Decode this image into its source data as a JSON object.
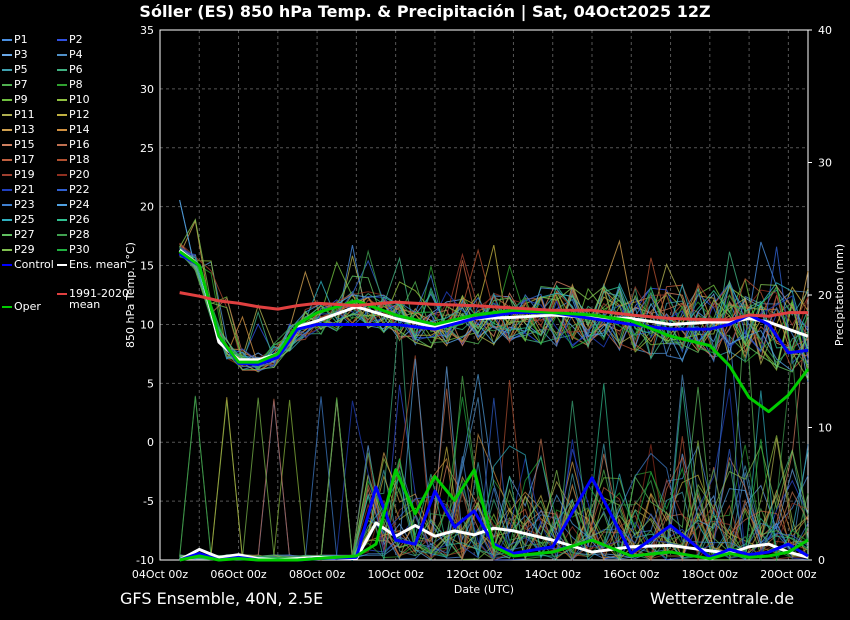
{
  "title": "Sóller  (ES)  850 hPa Temp. & Precipitación | Sat, 04Oct2025 12Z",
  "footer": {
    "model": "GFS Ensemble, 40N, 2.5E",
    "source": "Wetterzentrale.de"
  },
  "colors": {
    "background": "#000000",
    "grid": "#555555",
    "axis": "#ffffff",
    "control": "#0000ff",
    "ens_mean": "#ffffff",
    "climate": "#e04040",
    "oper": "#00cc00"
  },
  "chart_data": {
    "type": "line",
    "title": "Sóller  (ES)  850 hPa Temp. & Precipitación | Sat, 04Oct2025 12Z",
    "xlabel": "Date (UTC)",
    "ylabel": "850 hPa Temp. (°C)",
    "y2label": "Precipitation (mm)",
    "ylim": [
      -10,
      35
    ],
    "y2lim": [
      0,
      40
    ],
    "xlim": [
      0,
      16.5
    ],
    "yticks": [
      "-10",
      "-5",
      "0",
      "5",
      "10",
      "15",
      "20",
      "25",
      "30",
      "35"
    ],
    "y2ticks": [
      "0",
      "10",
      "20",
      "30",
      "40"
    ],
    "xticks": [
      "04Oct 00z",
      "06Oct 00z",
      "08Oct 00z",
      "10Oct 00z",
      "12Oct 00z",
      "14Oct 00z",
      "16Oct 00z",
      "18Oct 00z",
      "20Oct 00z"
    ],
    "grid": true,
    "legend": [
      {
        "name": "P1",
        "color": "#4a8fe0"
      },
      {
        "name": "P2",
        "color": "#3050e0"
      },
      {
        "name": "P3",
        "color": "#6aa8e8"
      },
      {
        "name": "P4",
        "color": "#5090c8"
      },
      {
        "name": "P5",
        "color": "#40a0b0"
      },
      {
        "name": "P6",
        "color": "#40b080"
      },
      {
        "name": "P7",
        "color": "#50b050"
      },
      {
        "name": "P8",
        "color": "#30a030"
      },
      {
        "name": "P9",
        "color": "#70c040"
      },
      {
        "name": "P10",
        "color": "#90c040"
      },
      {
        "name": "P11",
        "color": "#b0b050"
      },
      {
        "name": "P12",
        "color": "#c0b040"
      },
      {
        "name": "P13",
        "color": "#d0a050"
      },
      {
        "name": "P14",
        "color": "#d09040"
      },
      {
        "name": "P15",
        "color": "#d08060"
      },
      {
        "name": "P16",
        "color": "#c07050"
      },
      {
        "name": "P17",
        "color": "#c06040"
      },
      {
        "name": "P18",
        "color": "#b05030"
      },
      {
        "name": "P19",
        "color": "#a04030"
      },
      {
        "name": "P20",
        "color": "#903020"
      },
      {
        "name": "P21",
        "color": "#2040c0"
      },
      {
        "name": "P22",
        "color": "#3060d0"
      },
      {
        "name": "P23",
        "color": "#4080d0"
      },
      {
        "name": "P24",
        "color": "#50a0e0"
      },
      {
        "name": "P25",
        "color": "#30b0c0"
      },
      {
        "name": "P26",
        "color": "#30c090"
      },
      {
        "name": "P27",
        "color": "#60c060"
      },
      {
        "name": "P28",
        "color": "#40a050"
      },
      {
        "name": "P29",
        "color": "#80c050"
      },
      {
        "name": "P30",
        "color": "#20b040"
      },
      {
        "name": "Control",
        "color": "#0000ff"
      },
      {
        "name": "Ens. mean",
        "color": "#ffffff"
      },
      {
        "name": "1991-2020 mean",
        "color": "#e04040"
      },
      {
        "name": "Oper",
        "color": "#00cc00"
      }
    ],
    "series": [
      {
        "name": "Ens. mean",
        "axis": "temp",
        "x": [
          0.5,
          1,
          1.5,
          2,
          2.5,
          3,
          3.5,
          4,
          5,
          6,
          7,
          8,
          9,
          10,
          11,
          12,
          13,
          14,
          14.5,
          15,
          15.5,
          16,
          16.5
        ],
        "values": [
          16.3,
          15,
          8.5,
          7,
          7,
          7.5,
          9.8,
          10.3,
          11.5,
          10.5,
          9.8,
          10.5,
          10.6,
          10.8,
          10.6,
          10.5,
          10,
          10.2,
          10.2,
          10.5,
          10.2,
          9.6,
          9
        ]
      },
      {
        "name": "Control",
        "axis": "temp",
        "x": [
          0.5,
          1,
          1.5,
          2,
          2.5,
          3,
          3.5,
          4,
          5,
          6,
          7,
          8,
          9,
          10,
          11,
          12,
          13,
          14,
          14.5,
          15,
          15.5,
          16,
          16.5
        ],
        "values": [
          16,
          15,
          9,
          6.7,
          6.6,
          7.2,
          9.6,
          10,
          10,
          10,
          9.6,
          10.5,
          11,
          11,
          10.5,
          10,
          9.6,
          9.6,
          10,
          10.8,
          10,
          7.6,
          7.8
        ]
      },
      {
        "name": "Oper",
        "axis": "temp",
        "x": [
          0.5,
          1,
          1.5,
          2,
          2.5,
          3,
          3.5,
          4,
          5,
          6,
          7,
          8,
          9,
          10,
          11,
          12,
          13,
          14,
          14.5,
          15,
          15.5,
          16,
          16.5
        ],
        "values": [
          16.2,
          15,
          9,
          6.8,
          6.8,
          7.5,
          10,
          11,
          12,
          10.8,
          10,
          10.8,
          11.2,
          11,
          10.8,
          10.3,
          9,
          8.2,
          6.5,
          3.8,
          2.6,
          4,
          6.2
        ]
      },
      {
        "name": "1991-2020 mean",
        "axis": "temp",
        "x": [
          0.5,
          1,
          1.5,
          2,
          2.5,
          3,
          3.5,
          4,
          5,
          6,
          7,
          8,
          9,
          10,
          11,
          12,
          13,
          14,
          14.5,
          15,
          15.5,
          16,
          16.5
        ],
        "values": [
          12.7,
          12.4,
          12,
          11.8,
          11.5,
          11.3,
          11.6,
          11.8,
          11.6,
          11.9,
          11.7,
          11.6,
          11.4,
          11.2,
          11.2,
          10.8,
          10.5,
          10.4,
          10.4,
          10.8,
          10.7,
          11,
          11
        ]
      },
      {
        "name": "Ens. mean precip",
        "axis": "precip",
        "x": [
          0.5,
          1,
          1.5,
          2,
          2.5,
          3,
          3.5,
          4,
          5,
          5.5,
          6,
          6.5,
          7,
          7.5,
          8,
          8.5,
          9,
          10,
          11,
          12,
          13,
          14,
          14.5,
          15,
          15.5,
          16,
          16.5
        ],
        "values": [
          0,
          0.8,
          0.2,
          0.4,
          0.1,
          0,
          0.1,
          0.2,
          0.1,
          2.8,
          1.8,
          2.6,
          1.8,
          2.2,
          1.9,
          2.4,
          2.2,
          1.5,
          0.6,
          1,
          1.1,
          0.7,
          0.5,
          1,
          1.2,
          0.6,
          0.2
        ]
      },
      {
        "name": "Control precip",
        "axis": "precip",
        "x": [
          0.5,
          1,
          1.5,
          2,
          2.5,
          3,
          3.5,
          4,
          5,
          5.5,
          6,
          6.5,
          7,
          7.5,
          8,
          8.5,
          9,
          10,
          11,
          12,
          13,
          14,
          14.5,
          15,
          15.5,
          16,
          16.5
        ],
        "values": [
          0,
          0.5,
          0,
          0.2,
          0,
          0,
          0,
          0.1,
          0.2,
          5.5,
          1.5,
          1.2,
          5.2,
          2.5,
          3.7,
          1.2,
          0.5,
          1,
          6.2,
          0.5,
          2.6,
          0.2,
          0.8,
          0.4,
          0.6,
          1.2,
          0.3
        ]
      },
      {
        "name": "Oper precip",
        "axis": "precip",
        "x": [
          0.5,
          1,
          1.5,
          2,
          2.5,
          3,
          3.5,
          4,
          5,
          5.5,
          6,
          6.5,
          7,
          7.5,
          8,
          8.5,
          9,
          10,
          11,
          12,
          13,
          14,
          14.5,
          15,
          15.5,
          16,
          16.5
        ],
        "values": [
          0,
          0.3,
          0,
          0.1,
          0,
          0,
          0,
          0.1,
          0.3,
          1.2,
          6.8,
          3.5,
          6.3,
          4.5,
          6.8,
          1,
          0.3,
          0.6,
          1.5,
          0.3,
          0.6,
          0.1,
          0.5,
          0.2,
          0.3,
          0.6,
          1.5
        ]
      }
    ]
  }
}
